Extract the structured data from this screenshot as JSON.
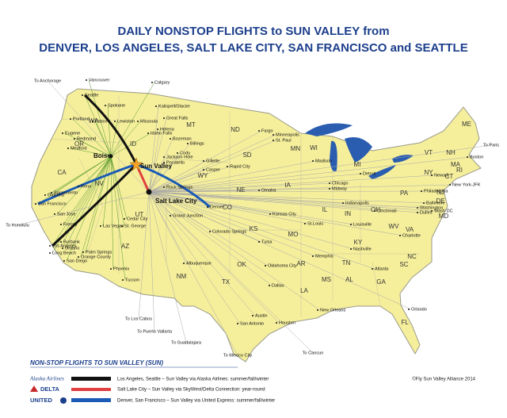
{
  "title": [
    "DAILY NONSTOP FLIGHTS to SUN VALLEY from",
    "DENVER, LOS ANGELES, SALT LAKE CITY, SAN FRANCISCO and SEATTLE"
  ],
  "hubs": [
    "Boise",
    "Sun Valley",
    "Salt Lake City"
  ],
  "states": [
    "WA",
    "OR",
    "CA",
    "NV",
    "ID",
    "MT",
    "WY",
    "UT",
    "AZ",
    "NM",
    "CO",
    "ND",
    "SD",
    "NE",
    "KS",
    "OK",
    "TX",
    "MN",
    "IA",
    "MO",
    "AR",
    "LA",
    "WI",
    "IL",
    "MS",
    "MI",
    "IN",
    "KY",
    "TN",
    "AL",
    "GA",
    "FL",
    "OH",
    "WV",
    "VA",
    "NC",
    "SC",
    "PA",
    "NY",
    "VT",
    "NH",
    "ME",
    "MA",
    "CT",
    "RI",
    "NJ",
    "DE",
    "MD"
  ],
  "cities": [
    "Vancouver",
    "Calgary",
    "Seattle",
    "Spokane",
    "Kalispell/Glacier",
    "Portland",
    "Pasco",
    "Lewiston",
    "Missoula",
    "Great Falls",
    "Helena",
    "Eugene",
    "Redmond",
    "Bozeman",
    "Billings",
    "Medford",
    "Idaho Falls",
    "Jackson Hole",
    "Cody",
    "Pocatello",
    "Gillette",
    "Rapid City",
    "Casper",
    "Sacramento",
    "Reno",
    "Oakland",
    "San Francisco",
    "San Jose",
    "Fresno",
    "Las Vegas",
    "St. George",
    "Cedar City",
    "Grand Junction",
    "Rock Springs",
    "Denver",
    "Colorado Springs",
    "Albuquerque",
    "Phoenix",
    "Tucson",
    "Los Angeles",
    "Long Beach",
    "Burbank",
    "Ontario",
    "Palm Springs",
    "Orange County",
    "San Diego",
    "Fargo",
    "Minneapolis",
    "St. Paul",
    "Madison",
    "Detroit",
    "Chicago",
    "Midway",
    "Omaha",
    "Kansas City",
    "St.Louis",
    "Indianapolis",
    "Cincinnati",
    "Louisville",
    "Nashville",
    "Memphis",
    "Atlanta",
    "Tulsa",
    "Oklahoma City",
    "Dallas",
    "Austin",
    "San Antonio",
    "Houston",
    "New Orleans",
    "Orlando",
    "Charlotte",
    "Boston",
    "New York-JFK",
    "Newark",
    "Philadelphia",
    "Baltimore",
    "Washington",
    "Dulles",
    "Wash DC"
  ],
  "international": [
    "To Anchorage",
    "To Honolulu",
    "To Los Cabos",
    "To Puerto Vallarta",
    "To Guadalajara",
    "To Mexico City",
    "To Cancun",
    "To Paris"
  ],
  "legend": {
    "title": "NON-STOP FLIGHTS TO SUN VALLEY (SUN)",
    "items": [
      {
        "airline": "Alaska Airlines",
        "text": "Los Angeles, Seattle – Sun Valley via Alaska Airlines: summer/fall/winter"
      },
      {
        "airline": "DELTA",
        "text": "Salt Lake City – Sun Valley via SkyWest/Delta Connection: year-round"
      },
      {
        "airline": "UNITED",
        "text": "Denver, San Francisco – Sun Valley via United Express: summer/fall/winter"
      }
    ]
  },
  "copyright": "©Fly Sun Valley Alliance 2014"
}
